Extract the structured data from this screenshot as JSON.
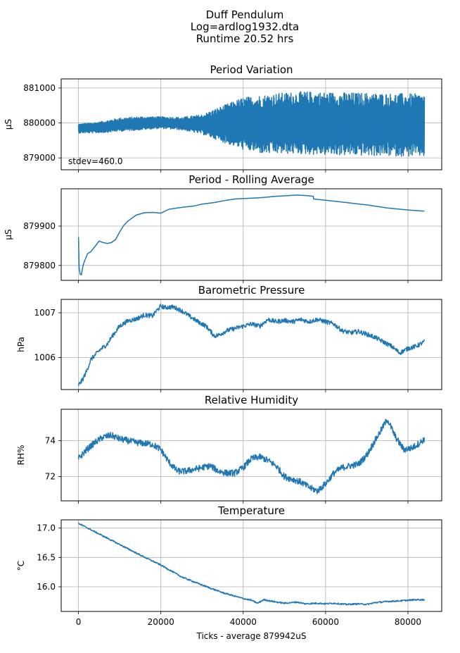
{
  "figure": {
    "title_lines": [
      "Duff Pendulum",
      "Log=ardlog1932.dta",
      "Runtime 20.52 hrs"
    ],
    "xlabel": "Ticks - average 879942uS"
  },
  "chart_data": [
    {
      "type": "line",
      "title": "Period Variation",
      "ylabel": "µS",
      "annotation": "stdev=460.0",
      "xlim": [
        -4200,
        88200
      ],
      "ylim": [
        878660,
        881260
      ],
      "xticks": [
        0,
        20000,
        40000,
        60000,
        80000
      ],
      "yticks": [
        879000,
        880000,
        881000
      ],
      "ytick_labels": [
        "879000",
        "880000",
        "881000"
      ],
      "grid": true,
      "x": [
        0,
        5000,
        10000,
        15000,
        20000,
        25000,
        30000,
        35000,
        40000,
        45000,
        50000,
        55000,
        60000,
        65000,
        70000,
        75000,
        80000,
        84000
      ],
      "series": [
        {
          "values_center": [
            879840,
            879870,
            879950,
            879990,
            880010,
            879980,
            879960,
            879970,
            879980,
            879960,
            879990,
            880000,
            879980,
            879970,
            879960,
            879950,
            879940,
            879930
          ],
          "values_amplitude": [
            130,
            160,
            190,
            190,
            170,
            180,
            280,
            520,
            750,
            850,
            880,
            900,
            900,
            900,
            900,
            900,
            900,
            900
          ]
        }
      ]
    },
    {
      "type": "line",
      "title": "Period - Rolling Average",
      "ylabel": "µS",
      "xlim": [
        -4200,
        88200
      ],
      "ylim": [
        879762,
        879995
      ],
      "xticks": [
        0,
        20000,
        40000,
        60000,
        80000
      ],
      "yticks": [
        879800,
        879900
      ],
      "ytick_labels": [
        "879800",
        "879900"
      ],
      "grid": true,
      "x": [
        0,
        150,
        400,
        700,
        1100,
        1500,
        2200,
        3000,
        4000,
        5000,
        6000,
        7000,
        8000,
        9000,
        10000,
        11000,
        12000,
        14000,
        16000,
        18000,
        20000,
        22000,
        24000,
        26000,
        28000,
        30000,
        33000,
        36000,
        38000,
        40000,
        44000,
        48000,
        50000,
        53000,
        55000,
        57000,
        57100,
        60000,
        65000,
        70000,
        75000,
        80000,
        84000
      ],
      "series": [
        {
          "values": [
            879872,
            879795,
            879778,
            879776,
            879800,
            879812,
            879830,
            879835,
            879848,
            879862,
            879858,
            879856,
            879858,
            879866,
            879885,
            879902,
            879913,
            879928,
            879934,
            879935,
            879933,
            879943,
            879946,
            879949,
            879951,
            879956,
            879960,
            879966,
            879969,
            879970,
            879972,
            879976,
            879977,
            879979,
            879978,
            879976,
            879969,
            879966,
            879960,
            879954,
            879946,
            879941,
            879938
          ]
        }
      ]
    },
    {
      "type": "line",
      "title": "Barometric Pressure",
      "ylabel": "hPa",
      "xlim": [
        -4200,
        88200
      ],
      "ylim": [
        1005.28,
        1007.3
      ],
      "xticks": [
        0,
        20000,
        40000,
        60000,
        80000
      ],
      "yticks": [
        1006,
        1007
      ],
      "ytick_labels": [
        "1006",
        "1007"
      ],
      "grid": true,
      "x": [
        0,
        1000,
        2000,
        3000,
        5000,
        7000,
        8000,
        10000,
        12000,
        14000,
        16000,
        18000,
        19000,
        20000,
        21000,
        23000,
        25000,
        27000,
        29000,
        31000,
        33000,
        34000,
        35000,
        36000,
        38000,
        40000,
        42000,
        44000,
        46000,
        48000,
        50000,
        52000,
        54000,
        56000,
        58000,
        60000,
        62000,
        64000,
        66000,
        68000,
        70000,
        72000,
        74000,
        76000,
        78000,
        80000,
        82000,
        84000
      ],
      "series": [
        {
          "values": [
            1005.38,
            1005.5,
            1005.7,
            1005.95,
            1006.15,
            1006.3,
            1006.45,
            1006.7,
            1006.82,
            1006.86,
            1006.95,
            1006.93,
            1007.05,
            1007.15,
            1007.12,
            1007.13,
            1007.05,
            1006.92,
            1006.8,
            1006.7,
            1006.48,
            1006.5,
            1006.55,
            1006.6,
            1006.65,
            1006.7,
            1006.75,
            1006.7,
            1006.85,
            1006.8,
            1006.83,
            1006.8,
            1006.85,
            1006.8,
            1006.85,
            1006.8,
            1006.75,
            1006.6,
            1006.55,
            1006.58,
            1006.52,
            1006.45,
            1006.35,
            1006.25,
            1006.1,
            1006.2,
            1006.25,
            1006.35
          ]
        }
      ]
    },
    {
      "type": "line",
      "title": "Relative Humidity",
      "ylabel": "RH%",
      "xlim": [
        -4200,
        88200
      ],
      "ylim": [
        70.65,
        75.75
      ],
      "xticks": [
        0,
        20000,
        40000,
        60000,
        80000
      ],
      "yticks": [
        72,
        74
      ],
      "ytick_labels": [
        "72",
        "74"
      ],
      "grid": true,
      "x": [
        0,
        2000,
        4000,
        6000,
        8000,
        10000,
        12000,
        14000,
        16000,
        18000,
        20000,
        22000,
        24000,
        26000,
        28000,
        30000,
        32000,
        34000,
        36000,
        38000,
        40000,
        42000,
        44000,
        46000,
        48000,
        50000,
        52000,
        54000,
        56000,
        58000,
        60000,
        62000,
        64000,
        66000,
        68000,
        70000,
        72000,
        73500,
        75000,
        77000,
        79000,
        81000,
        83000,
        84000
      ],
      "series": [
        {
          "values": [
            73.0,
            73.5,
            73.9,
            74.2,
            74.3,
            74.1,
            74.0,
            73.9,
            73.85,
            73.8,
            73.5,
            72.8,
            72.3,
            72.3,
            72.4,
            72.5,
            72.6,
            72.3,
            72.2,
            72.2,
            72.5,
            73.0,
            73.1,
            72.9,
            72.6,
            72.0,
            71.85,
            71.7,
            71.4,
            71.2,
            71.6,
            72.2,
            72.5,
            72.6,
            72.7,
            73.2,
            74.0,
            74.6,
            75.2,
            74.2,
            73.5,
            73.6,
            73.9,
            74.1
          ]
        }
      ]
    },
    {
      "type": "line",
      "title": "Temperature",
      "ylabel": "°C",
      "xlim": [
        -4200,
        88200
      ],
      "ylim": [
        15.58,
        17.14
      ],
      "xticks": [
        0,
        20000,
        40000,
        60000,
        80000
      ],
      "xtick_labels": [
        "0",
        "20000",
        "40000",
        "60000",
        "80000"
      ],
      "yticks": [
        16.0,
        16.5,
        17.0
      ],
      "ytick_labels": [
        "16.0",
        "16.5",
        "17.0"
      ],
      "grid": true,
      "x": [
        0,
        5000,
        10000,
        15000,
        20000,
        25000,
        30000,
        35000,
        38000,
        40000,
        42000,
        43500,
        45000,
        48000,
        50000,
        53000,
        55000,
        58000,
        60000,
        62000,
        65000,
        68000,
        70000,
        72000,
        75000,
        78000,
        80000,
        82000,
        84000
      ],
      "series": [
        {
          "values": [
            17.08,
            16.9,
            16.72,
            16.54,
            16.37,
            16.17,
            16.03,
            15.9,
            15.84,
            15.8,
            15.77,
            15.72,
            15.78,
            15.74,
            15.72,
            15.74,
            15.71,
            15.72,
            15.71,
            15.72,
            15.7,
            15.71,
            15.7,
            15.73,
            15.75,
            15.76,
            15.77,
            15.78,
            15.78
          ]
        }
      ]
    }
  ]
}
